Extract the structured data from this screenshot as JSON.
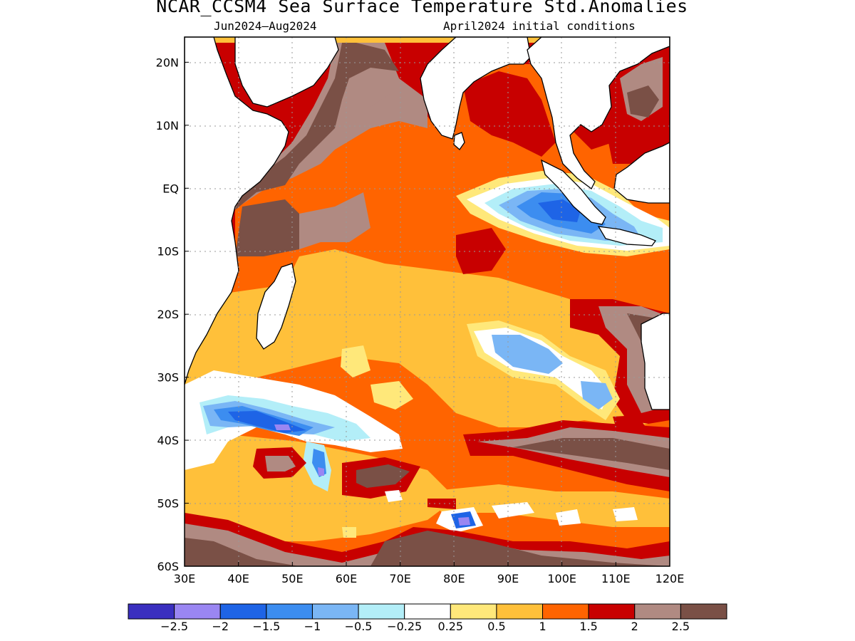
{
  "title": "NCAR_CCSM4 Sea Surface Temperature Std.Anomalies",
  "subtitle_left": "Jun2024–Aug2024",
  "subtitle_right": "April2024 initial conditions",
  "map": {
    "region": "Indian Ocean",
    "lon_range": [
      30,
      120
    ],
    "lat_range": [
      -60,
      24
    ],
    "x_ticks": [
      "30E",
      "40E",
      "50E",
      "60E",
      "70E",
      "80E",
      "90E",
      "100E",
      "110E",
      "120E"
    ],
    "y_ticks": [
      "20N",
      "10N",
      "EQ",
      "10S",
      "20S",
      "30S",
      "40S",
      "50S",
      "60S"
    ],
    "grid": "dotted",
    "land_color": "#ffffff",
    "coastline_color": "#000000"
  },
  "colorbar": {
    "colors": [
      "#3a2fbf",
      "#9a86f2",
      "#1e64e6",
      "#3c8df0",
      "#7ab6f5",
      "#b3eef8",
      "#ffffff",
      "#ffe87a",
      "#ffc03a",
      "#ff6400",
      "#c80000",
      "#b08a82",
      "#7a5046"
    ],
    "labels": [
      "−2.5",
      "−2",
      "−1.5",
      "−1",
      "−0.5",
      "−0.25",
      "0.25",
      "0.5",
      "1",
      "1.5",
      "2",
      "2.5"
    ]
  }
}
